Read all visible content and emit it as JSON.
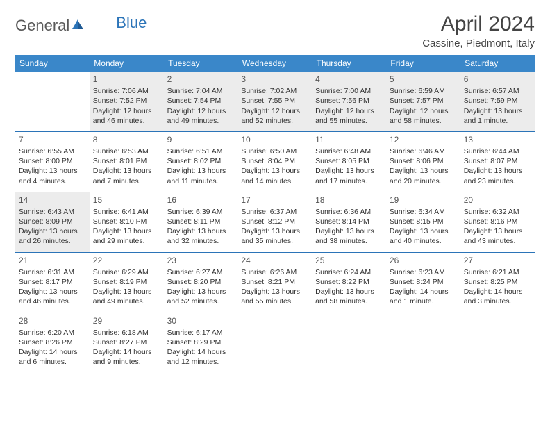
{
  "brand": {
    "part1": "General",
    "part2": "Blue"
  },
  "title": "April 2024",
  "location": "Cassine, Piedmont, Italy",
  "colors": {
    "header_bg": "#3a87c9",
    "header_text": "#ffffff",
    "border": "#2b74b8",
    "shade": "#ececec",
    "text": "#333333",
    "logo_gray": "#5a5a5a",
    "logo_blue": "#2b74b8"
  },
  "weekdays": [
    "Sunday",
    "Monday",
    "Tuesday",
    "Wednesday",
    "Thursday",
    "Friday",
    "Saturday"
  ],
  "weeks": [
    [
      null,
      {
        "n": "1",
        "sr": "Sunrise: 7:06 AM",
        "ss": "Sunset: 7:52 PM",
        "d1": "Daylight: 12 hours",
        "d2": "and 46 minutes."
      },
      {
        "n": "2",
        "sr": "Sunrise: 7:04 AM",
        "ss": "Sunset: 7:54 PM",
        "d1": "Daylight: 12 hours",
        "d2": "and 49 minutes."
      },
      {
        "n": "3",
        "sr": "Sunrise: 7:02 AM",
        "ss": "Sunset: 7:55 PM",
        "d1": "Daylight: 12 hours",
        "d2": "and 52 minutes."
      },
      {
        "n": "4",
        "sr": "Sunrise: 7:00 AM",
        "ss": "Sunset: 7:56 PM",
        "d1": "Daylight: 12 hours",
        "d2": "and 55 minutes."
      },
      {
        "n": "5",
        "sr": "Sunrise: 6:59 AM",
        "ss": "Sunset: 7:57 PM",
        "d1": "Daylight: 12 hours",
        "d2": "and 58 minutes."
      },
      {
        "n": "6",
        "sr": "Sunrise: 6:57 AM",
        "ss": "Sunset: 7:59 PM",
        "d1": "Daylight: 13 hours",
        "d2": "and 1 minute."
      }
    ],
    [
      {
        "n": "7",
        "sr": "Sunrise: 6:55 AM",
        "ss": "Sunset: 8:00 PM",
        "d1": "Daylight: 13 hours",
        "d2": "and 4 minutes."
      },
      {
        "n": "8",
        "sr": "Sunrise: 6:53 AM",
        "ss": "Sunset: 8:01 PM",
        "d1": "Daylight: 13 hours",
        "d2": "and 7 minutes."
      },
      {
        "n": "9",
        "sr": "Sunrise: 6:51 AM",
        "ss": "Sunset: 8:02 PM",
        "d1": "Daylight: 13 hours",
        "d2": "and 11 minutes."
      },
      {
        "n": "10",
        "sr": "Sunrise: 6:50 AM",
        "ss": "Sunset: 8:04 PM",
        "d1": "Daylight: 13 hours",
        "d2": "and 14 minutes."
      },
      {
        "n": "11",
        "sr": "Sunrise: 6:48 AM",
        "ss": "Sunset: 8:05 PM",
        "d1": "Daylight: 13 hours",
        "d2": "and 17 minutes."
      },
      {
        "n": "12",
        "sr": "Sunrise: 6:46 AM",
        "ss": "Sunset: 8:06 PM",
        "d1": "Daylight: 13 hours",
        "d2": "and 20 minutes."
      },
      {
        "n": "13",
        "sr": "Sunrise: 6:44 AM",
        "ss": "Sunset: 8:07 PM",
        "d1": "Daylight: 13 hours",
        "d2": "and 23 minutes."
      }
    ],
    [
      {
        "n": "14",
        "sr": "Sunrise: 6:43 AM",
        "ss": "Sunset: 8:09 PM",
        "d1": "Daylight: 13 hours",
        "d2": "and 26 minutes."
      },
      {
        "n": "15",
        "sr": "Sunrise: 6:41 AM",
        "ss": "Sunset: 8:10 PM",
        "d1": "Daylight: 13 hours",
        "d2": "and 29 minutes."
      },
      {
        "n": "16",
        "sr": "Sunrise: 6:39 AM",
        "ss": "Sunset: 8:11 PM",
        "d1": "Daylight: 13 hours",
        "d2": "and 32 minutes."
      },
      {
        "n": "17",
        "sr": "Sunrise: 6:37 AM",
        "ss": "Sunset: 8:12 PM",
        "d1": "Daylight: 13 hours",
        "d2": "and 35 minutes."
      },
      {
        "n": "18",
        "sr": "Sunrise: 6:36 AM",
        "ss": "Sunset: 8:14 PM",
        "d1": "Daylight: 13 hours",
        "d2": "and 38 minutes."
      },
      {
        "n": "19",
        "sr": "Sunrise: 6:34 AM",
        "ss": "Sunset: 8:15 PM",
        "d1": "Daylight: 13 hours",
        "d2": "and 40 minutes."
      },
      {
        "n": "20",
        "sr": "Sunrise: 6:32 AM",
        "ss": "Sunset: 8:16 PM",
        "d1": "Daylight: 13 hours",
        "d2": "and 43 minutes."
      }
    ],
    [
      {
        "n": "21",
        "sr": "Sunrise: 6:31 AM",
        "ss": "Sunset: 8:17 PM",
        "d1": "Daylight: 13 hours",
        "d2": "and 46 minutes."
      },
      {
        "n": "22",
        "sr": "Sunrise: 6:29 AM",
        "ss": "Sunset: 8:19 PM",
        "d1": "Daylight: 13 hours",
        "d2": "and 49 minutes."
      },
      {
        "n": "23",
        "sr": "Sunrise: 6:27 AM",
        "ss": "Sunset: 8:20 PM",
        "d1": "Daylight: 13 hours",
        "d2": "and 52 minutes."
      },
      {
        "n": "24",
        "sr": "Sunrise: 6:26 AM",
        "ss": "Sunset: 8:21 PM",
        "d1": "Daylight: 13 hours",
        "d2": "and 55 minutes."
      },
      {
        "n": "25",
        "sr": "Sunrise: 6:24 AM",
        "ss": "Sunset: 8:22 PM",
        "d1": "Daylight: 13 hours",
        "d2": "and 58 minutes."
      },
      {
        "n": "26",
        "sr": "Sunrise: 6:23 AM",
        "ss": "Sunset: 8:24 PM",
        "d1": "Daylight: 14 hours",
        "d2": "and 1 minute."
      },
      {
        "n": "27",
        "sr": "Sunrise: 6:21 AM",
        "ss": "Sunset: 8:25 PM",
        "d1": "Daylight: 14 hours",
        "d2": "and 3 minutes."
      }
    ],
    [
      {
        "n": "28",
        "sr": "Sunrise: 6:20 AM",
        "ss": "Sunset: 8:26 PM",
        "d1": "Daylight: 14 hours",
        "d2": "and 6 minutes."
      },
      {
        "n": "29",
        "sr": "Sunrise: 6:18 AM",
        "ss": "Sunset: 8:27 PM",
        "d1": "Daylight: 14 hours",
        "d2": "and 9 minutes."
      },
      {
        "n": "30",
        "sr": "Sunrise: 6:17 AM",
        "ss": "Sunset: 8:29 PM",
        "d1": "Daylight: 14 hours",
        "d2": "and 12 minutes."
      },
      null,
      null,
      null,
      null
    ]
  ]
}
